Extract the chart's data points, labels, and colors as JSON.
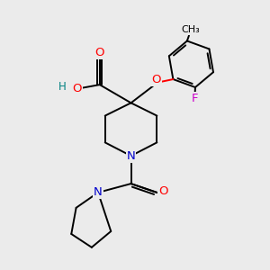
{
  "bg_color": "#ebebeb",
  "atom_colors": {
    "C": "#000000",
    "O": "#ff0000",
    "N": "#0000cc",
    "F": "#cc00cc",
    "H": "#008080"
  }
}
